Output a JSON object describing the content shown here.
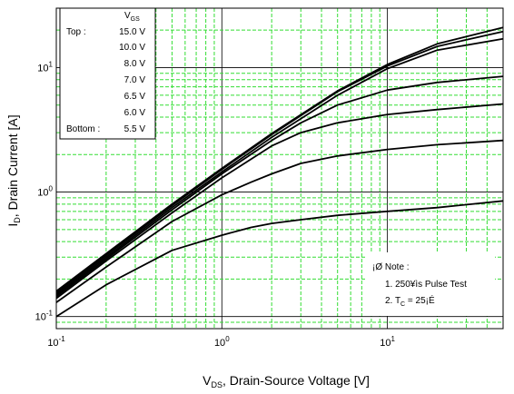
{
  "chart_data": {
    "type": "line",
    "x_scale": "log",
    "y_scale": "log",
    "xlim": [
      0.1,
      50
    ],
    "ylim": [
      0.08,
      30
    ],
    "xlabel": {
      "pre": "V",
      "sub": "DS",
      "post": ", Drain-Source Voltage [V]"
    },
    "ylabel": {
      "pre": "I",
      "sub": "D",
      "post": ", Drain Current [A]"
    },
    "x_ticks": [
      {
        "value": 0.1,
        "base": "10",
        "exp": "-1"
      },
      {
        "value": 1,
        "base": "10",
        "exp": "0"
      },
      {
        "value": 10,
        "base": "10",
        "exp": "1"
      }
    ],
    "y_ticks": [
      {
        "value": 0.1,
        "base": "10",
        "exp": "-1"
      },
      {
        "value": 1,
        "base": "10",
        "exp": "0"
      },
      {
        "value": 10,
        "base": "10",
        "exp": "1"
      }
    ],
    "grid": true,
    "grid_color": "#33dd33",
    "line_color": "#000000",
    "legend": {
      "header": {
        "pre": "V",
        "sub": "GS"
      },
      "top_label": "Top :",
      "bottom_label": "Bottom :",
      "entries": [
        "15.0 V",
        "10.0 V",
        "8.0 V",
        "7.0 V",
        "6.5 V",
        "6.0 V",
        "5.5 V"
      ]
    },
    "note": {
      "title": "¡Ø Note :",
      "line1": "1. 250¥ìs Pulse Test",
      "line2_pre": "2. T",
      "line2_sub": "C",
      "line2_post": " = 25¡É"
    },
    "series": [
      {
        "name": "15.0 V",
        "x": [
          0.1,
          0.2,
          0.5,
          1,
          2,
          5,
          10,
          20,
          50
        ],
        "y": [
          0.16,
          0.32,
          0.8,
          1.55,
          2.95,
          6.5,
          10.6,
          15.5,
          21
        ]
      },
      {
        "name": "10.0 V",
        "x": [
          0.1,
          0.2,
          0.5,
          1,
          2,
          5,
          10,
          20,
          50
        ],
        "y": [
          0.155,
          0.31,
          0.78,
          1.52,
          2.9,
          6.4,
          10.3,
          14.8,
          19.5
        ]
      },
      {
        "name": "8.0 V",
        "x": [
          0.1,
          0.2,
          0.5,
          1,
          2,
          5,
          10,
          20,
          50
        ],
        "y": [
          0.15,
          0.3,
          0.75,
          1.45,
          2.75,
          6.0,
          9.8,
          13.8,
          17.0
        ]
      },
      {
        "name": "7.0 V",
        "x": [
          0.1,
          0.2,
          0.5,
          1,
          2,
          3,
          5,
          10,
          20,
          50
        ],
        "y": [
          0.145,
          0.29,
          0.72,
          1.4,
          2.6,
          3.6,
          5.0,
          6.6,
          7.6,
          8.5
        ]
      },
      {
        "name": "6.5 V",
        "x": [
          0.1,
          0.2,
          0.5,
          1,
          2,
          3,
          5,
          10,
          20,
          50
        ],
        "y": [
          0.14,
          0.28,
          0.68,
          1.3,
          2.35,
          3.0,
          3.6,
          4.2,
          4.6,
          5.1
        ]
      },
      {
        "name": "6.0 V",
        "x": [
          0.1,
          0.2,
          0.5,
          1,
          1.5,
          2,
          3,
          5,
          10,
          20,
          50
        ],
        "y": [
          0.13,
          0.25,
          0.58,
          0.95,
          1.2,
          1.4,
          1.7,
          1.95,
          2.2,
          2.4,
          2.6
        ]
      },
      {
        "name": "5.5 V",
        "x": [
          0.1,
          0.2,
          0.5,
          1,
          1.5,
          2,
          3,
          5,
          10,
          20,
          50
        ],
        "y": [
          0.1,
          0.18,
          0.34,
          0.45,
          0.52,
          0.56,
          0.6,
          0.65,
          0.7,
          0.75,
          0.85
        ]
      }
    ]
  }
}
